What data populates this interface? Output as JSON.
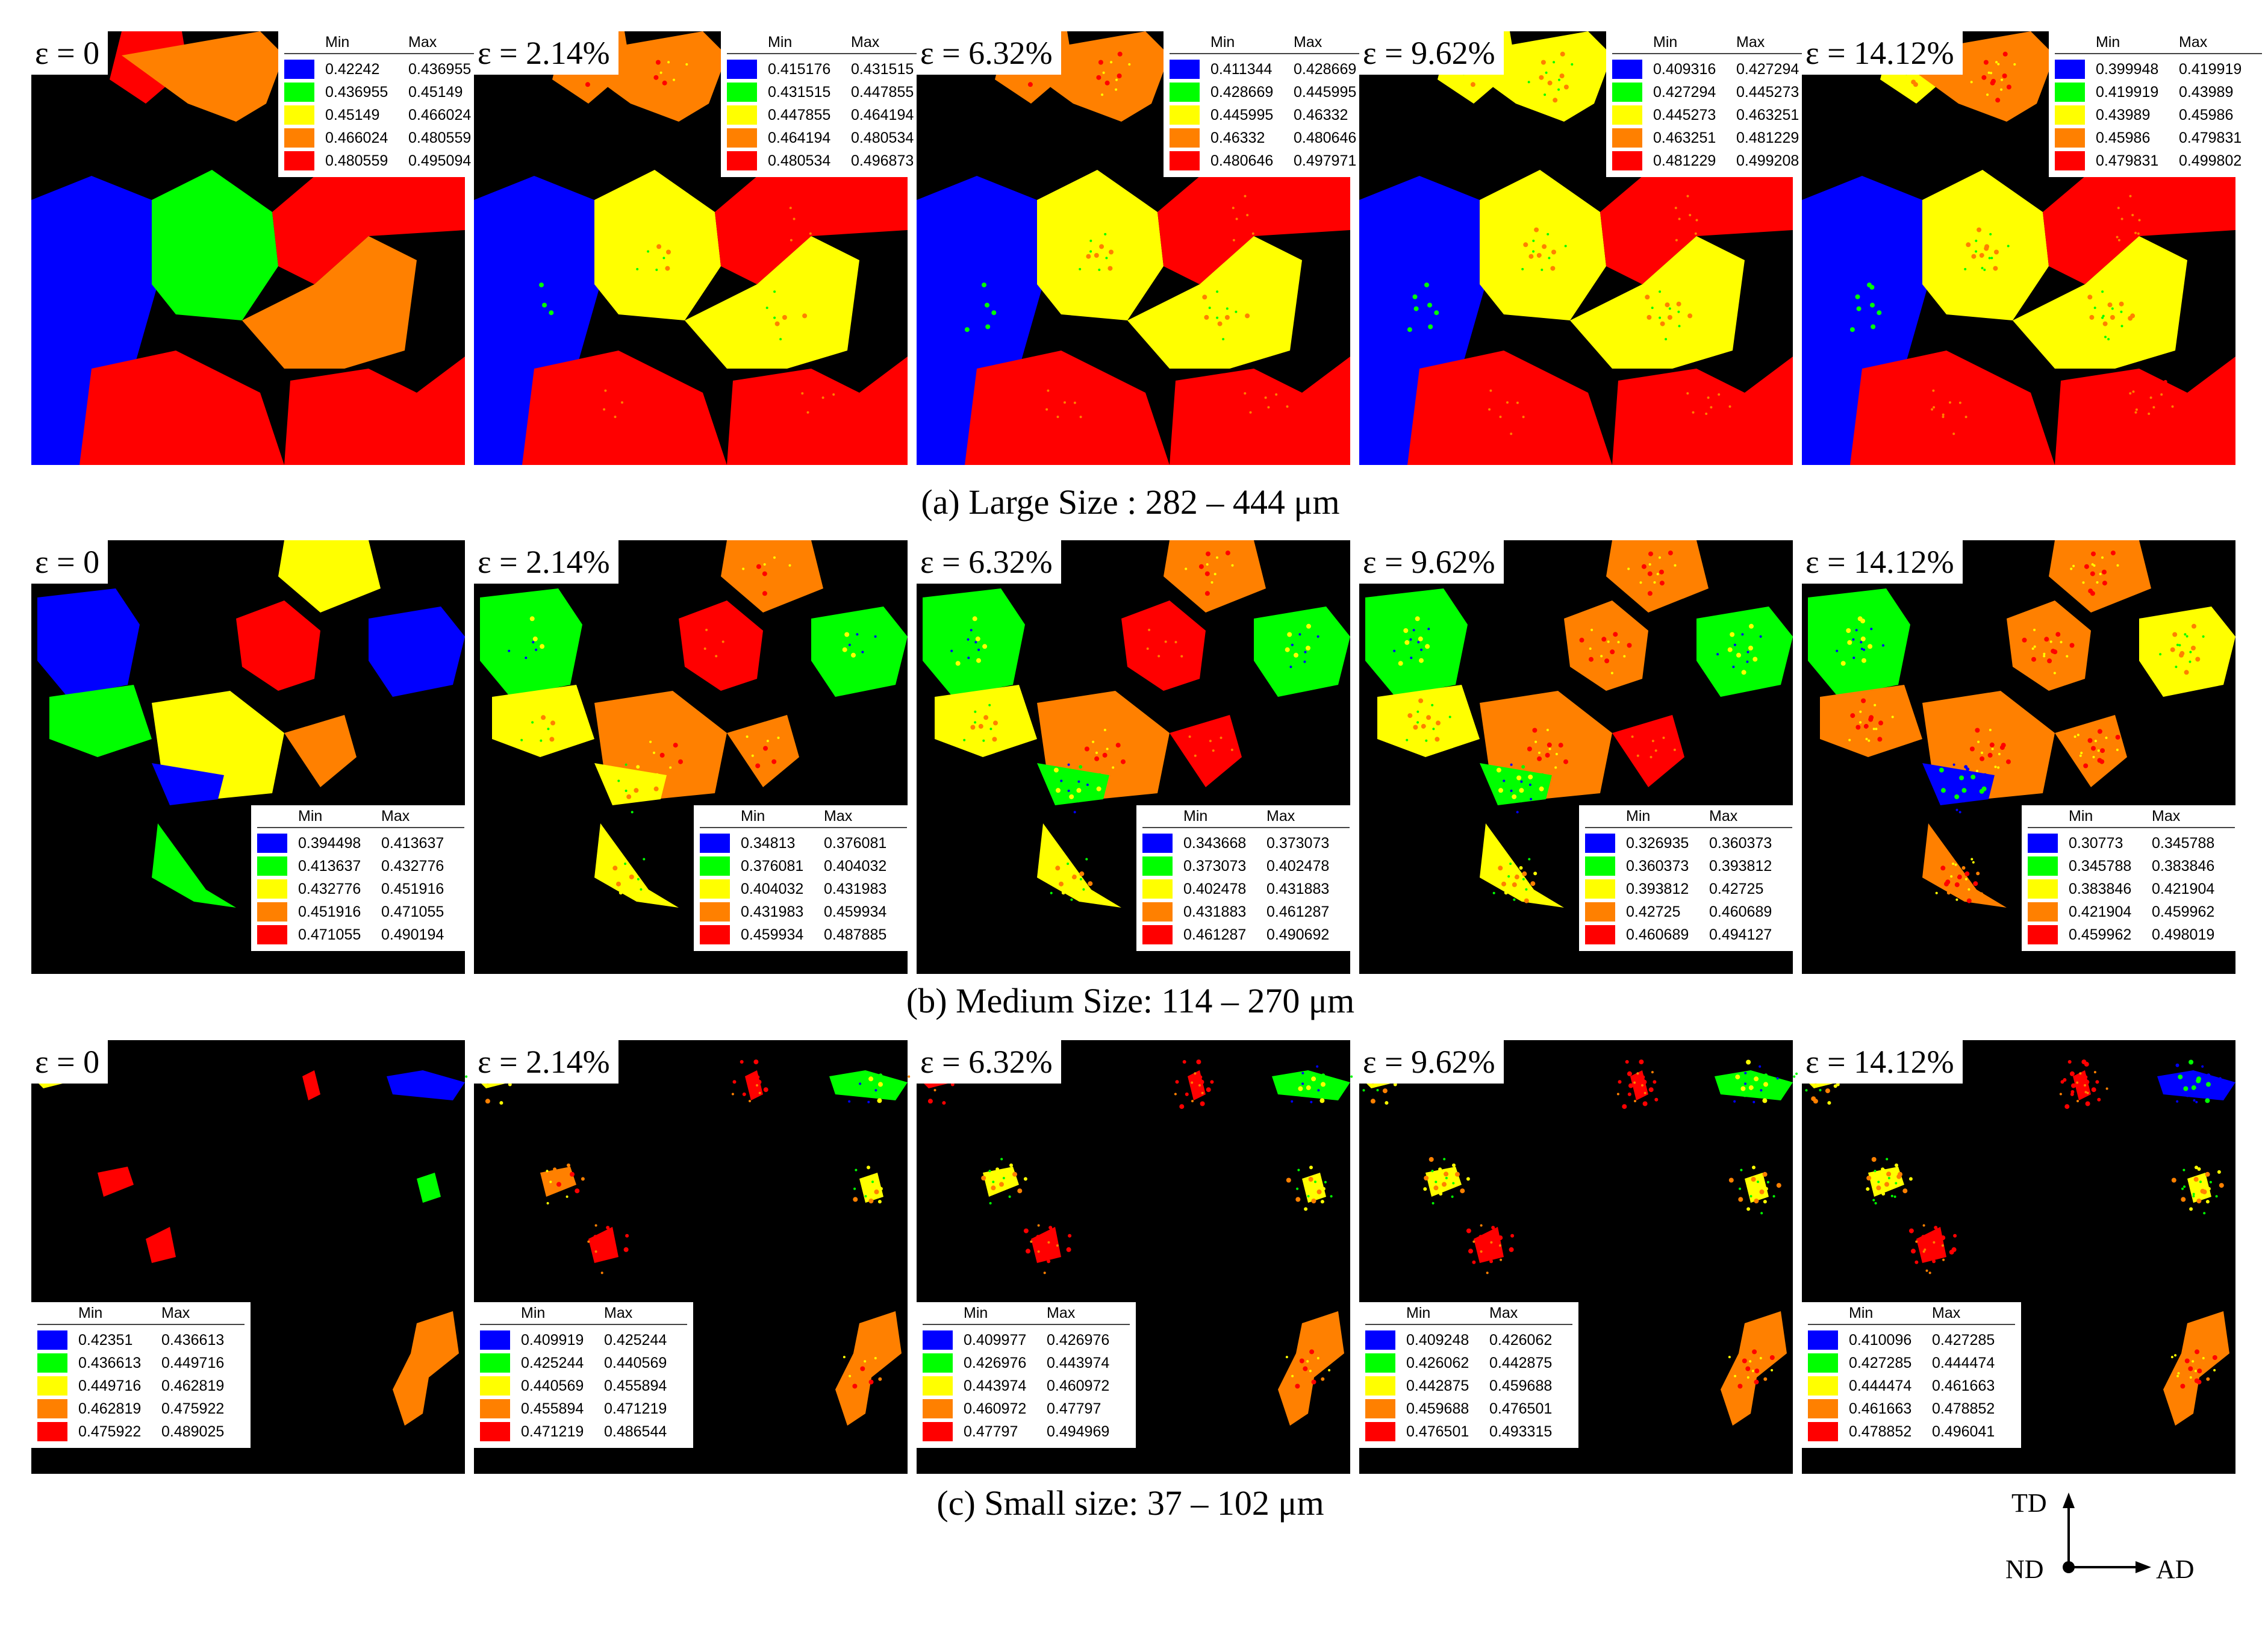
{
  "figure": {
    "rows": [
      {
        "caption": "(a) Large Size : 282 – 444 μm",
        "panels": [
          {
            "strain": "ε = 0",
            "legend": [
              [
                "0.42242",
                "0.436955"
              ],
              [
                "0.436955",
                "0.45149"
              ],
              [
                "0.45149",
                "0.466024"
              ],
              [
                "0.466024",
                "0.480559"
              ],
              [
                "0.480559",
                "0.495094"
              ]
            ]
          },
          {
            "strain": "ε = 2.14%",
            "legend": [
              [
                "0.415176",
                "0.431515"
              ],
              [
                "0.431515",
                "0.447855"
              ],
              [
                "0.447855",
                "0.464194"
              ],
              [
                "0.464194",
                "0.480534"
              ],
              [
                "0.480534",
                "0.496873"
              ]
            ]
          },
          {
            "strain": "ε = 6.32%",
            "legend": [
              [
                "0.411344",
                "0.428669"
              ],
              [
                "0.428669",
                "0.445995"
              ],
              [
                "0.445995",
                "0.46332"
              ],
              [
                "0.46332",
                "0.480646"
              ],
              [
                "0.480646",
                "0.497971"
              ]
            ]
          },
          {
            "strain": "ε = 9.62%",
            "legend": [
              [
                "0.409316",
                "0.427294"
              ],
              [
                "0.427294",
                "0.445273"
              ],
              [
                "0.445273",
                "0.463251"
              ],
              [
                "0.463251",
                "0.481229"
              ],
              [
                "0.481229",
                "0.499208"
              ]
            ]
          },
          {
            "strain": "ε = 14.12%",
            "legend": [
              [
                "0.399948",
                "0.419919"
              ],
              [
                "0.419919",
                "0.43989"
              ],
              [
                "0.43989",
                "0.45986"
              ],
              [
                "0.45986",
                "0.479831"
              ],
              [
                "0.479831",
                "0.499802"
              ]
            ]
          }
        ]
      },
      {
        "caption": "(b) Medium Size: 114 – 270 μm",
        "panels": [
          {
            "strain": "ε = 0",
            "legend": [
              [
                "0.394498",
                "0.413637"
              ],
              [
                "0.413637",
                "0.432776"
              ],
              [
                "0.432776",
                "0.451916"
              ],
              [
                "0.451916",
                "0.471055"
              ],
              [
                "0.471055",
                "0.490194"
              ]
            ]
          },
          {
            "strain": "ε = 2.14%",
            "legend": [
              [
                "0.34813",
                "0.376081"
              ],
              [
                "0.376081",
                "0.404032"
              ],
              [
                "0.404032",
                "0.431983"
              ],
              [
                "0.431983",
                "0.459934"
              ],
              [
                "0.459934",
                "0.487885"
              ]
            ]
          },
          {
            "strain": "ε = 6.32%",
            "legend": [
              [
                "0.343668",
                "0.373073"
              ],
              [
                "0.373073",
                "0.402478"
              ],
              [
                "0.402478",
                "0.431883"
              ],
              [
                "0.431883",
                "0.461287"
              ],
              [
                "0.461287",
                "0.490692"
              ]
            ]
          },
          {
            "strain": "ε = 9.62%",
            "legend": [
              [
                "0.326935",
                "0.360373"
              ],
              [
                "0.360373",
                "0.393812"
              ],
              [
                "0.393812",
                "0.42725"
              ],
              [
                "0.42725",
                "0.460689"
              ],
              [
                "0.460689",
                "0.494127"
              ]
            ]
          },
          {
            "strain": "ε = 14.12%",
            "legend": [
              [
                "0.30773",
                "0.345788"
              ],
              [
                "0.345788",
                "0.383846"
              ],
              [
                "0.383846",
                "0.421904"
              ],
              [
                "0.421904",
                "0.459962"
              ],
              [
                "0.459962",
                "0.498019"
              ]
            ]
          }
        ]
      },
      {
        "caption": "(c) Small size: 37 – 102 μm",
        "panels": [
          {
            "strain": "ε = 0",
            "legend": [
              [
                "0.42351",
                "0.436613"
              ],
              [
                "0.436613",
                "0.449716"
              ],
              [
                "0.449716",
                "0.462819"
              ],
              [
                "0.462819",
                "0.475922"
              ],
              [
                "0.475922",
                "0.489025"
              ]
            ]
          },
          {
            "strain": "ε = 2.14%",
            "legend": [
              [
                "0.409919",
                "0.425244"
              ],
              [
                "0.425244",
                "0.440569"
              ],
              [
                "0.440569",
                "0.455894"
              ],
              [
                "0.455894",
                "0.471219"
              ],
              [
                "0.471219",
                "0.486544"
              ]
            ]
          },
          {
            "strain": "ε = 6.32%",
            "legend": [
              [
                "0.409977",
                "0.426976"
              ],
              [
                "0.426976",
                "0.443974"
              ],
              [
                "0.443974",
                "0.460972"
              ],
              [
                "0.460972",
                "0.47797"
              ],
              [
                "0.47797",
                "0.494969"
              ]
            ]
          },
          {
            "strain": "ε = 9.62%",
            "legend": [
              [
                "0.409248",
                "0.426062"
              ],
              [
                "0.426062",
                "0.442875"
              ],
              [
                "0.442875",
                "0.459688"
              ],
              [
                "0.459688",
                "0.476501"
              ],
              [
                "0.476501",
                "0.493315"
              ]
            ]
          },
          {
            "strain": "ε = 14.12%",
            "legend": [
              [
                "0.410096",
                "0.427285"
              ],
              [
                "0.427285",
                "0.444474"
              ],
              [
                "0.444474",
                "0.461663"
              ],
              [
                "0.461663",
                "0.478852"
              ],
              [
                "0.478852",
                "0.496041"
              ]
            ]
          }
        ]
      }
    ],
    "legend_header": {
      "min": "Min",
      "max": "Max"
    },
    "colors": [
      "#0000ff",
      "#00ff00",
      "#ffff00",
      "#ff8000",
      "#ff0000"
    ],
    "axes": {
      "up": "TD",
      "right": "AD",
      "origin": "ND"
    }
  }
}
